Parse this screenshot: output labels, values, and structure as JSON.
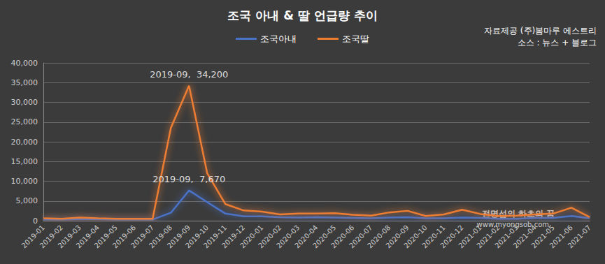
{
  "chart_data": {
    "type": "line",
    "title": "조국 아내 & 딸 언급량 추이",
    "notes": [
      "자료제공 (주)봄마루 에스트리",
      "소스 : 뉴스 + 블로그"
    ],
    "watermark": [
      "전명섭의 하츠의 꿈",
      "www.myongsob.com"
    ],
    "categories": [
      "2019-01",
      "2019-02",
      "2019-03",
      "2019-04",
      "2019-05",
      "2019-06",
      "2019-07",
      "2019-08",
      "2019-09",
      "2019-10",
      "2019-11",
      "2019-12",
      "2020-01",
      "2020-02",
      "2020-03",
      "2020-04",
      "2020-05",
      "2020-06",
      "2020-07",
      "2020-08",
      "2020-09",
      "2020-10",
      "2020-11",
      "2020-12",
      "2021-01",
      "2021-02",
      "2021-03",
      "2021-04",
      "2021-05",
      "2021-06",
      "2021-07"
    ],
    "series": [
      {
        "name": "조국아내",
        "color": "#4a72c8",
        "values": [
          300,
          300,
          400,
          400,
          300,
          300,
          300,
          2000,
          7670,
          4700,
          1800,
          1100,
          1100,
          900,
          800,
          900,
          800,
          700,
          600,
          800,
          900,
          600,
          600,
          800,
          700,
          500,
          500,
          700,
          700,
          1200,
          600
        ]
      },
      {
        "name": "조국딸",
        "color": "#ed7d31",
        "values": [
          600,
          500,
          800,
          600,
          500,
          500,
          500,
          23500,
          34200,
          12000,
          4200,
          2600,
          2300,
          1600,
          1800,
          1800,
          1900,
          1500,
          1300,
          2100,
          2500,
          1200,
          1600,
          2800,
          1700,
          1200,
          1300,
          1600,
          1800,
          3300,
          900
        ]
      }
    ],
    "annotations": [
      {
        "series": "조국딸",
        "category": "2019-09",
        "value": 34200,
        "text": "2019-09,  34,200"
      },
      {
        "series": "조국아내",
        "category": "2019-09",
        "value": 7670,
        "text": "2019-09,  7,670"
      }
    ],
    "ylim": [
      0,
      40000
    ],
    "yticks": [
      0,
      {
        "value": 5000,
        "label": "5,000"
      },
      {
        "value": 10000,
        "label": "10,000"
      },
      {
        "value": 15000,
        "label": "15,000"
      },
      {
        "value": 20000,
        "label": "20,000"
      },
      {
        "value": 25000,
        "label": "25,000"
      },
      {
        "value": 30000,
        "label": "30,000"
      },
      {
        "value": 35000,
        "label": "35,000"
      },
      {
        "value": 40000,
        "label": "40,000"
      }
    ],
    "grid": true,
    "legend": "top"
  }
}
